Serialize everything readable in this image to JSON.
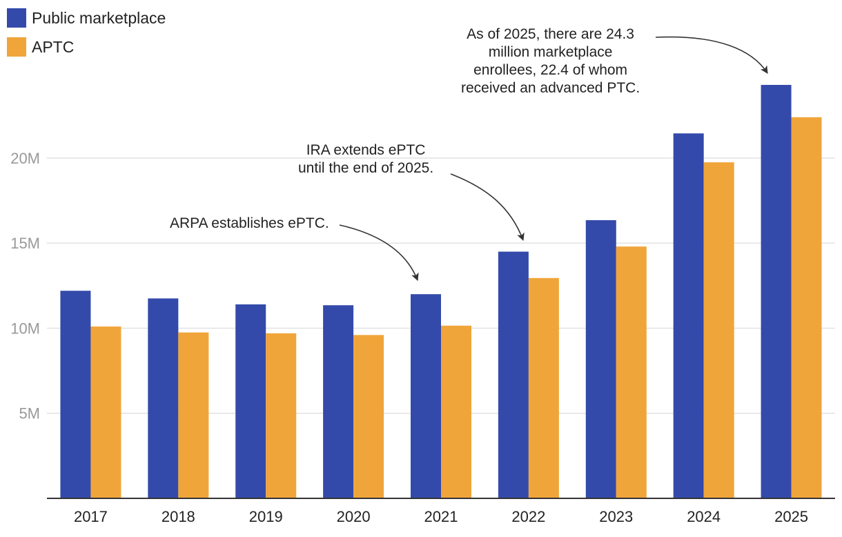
{
  "chart_data": {
    "type": "bar",
    "categories": [
      "2017",
      "2018",
      "2019",
      "2020",
      "2021",
      "2022",
      "2023",
      "2024",
      "2025"
    ],
    "series": [
      {
        "name": "Public marketplace",
        "color": "#344aaa",
        "values": [
          12.2,
          11.75,
          11.4,
          11.35,
          12.0,
          14.5,
          16.35,
          21.45,
          24.3
        ]
      },
      {
        "name": "APTC",
        "color": "#f0a53a",
        "values": [
          10.1,
          9.75,
          9.7,
          9.6,
          10.15,
          12.95,
          14.8,
          19.75,
          22.4
        ]
      }
    ],
    "ylim": [
      0,
      24.3
    ],
    "yticks": [
      {
        "value": 5,
        "label": "5M"
      },
      {
        "value": 10,
        "label": "10M"
      },
      {
        "value": 15,
        "label": "15M"
      },
      {
        "value": 20,
        "label": "20M"
      }
    ],
    "grid": true,
    "legend_position": "top-left",
    "annotations": [
      {
        "id": "arpa",
        "lines": [
          "ARPA establishes ePTC."
        ]
      },
      {
        "id": "ira",
        "lines": [
          "IRA extends ePTC",
          "until the end of 2025."
        ]
      },
      {
        "id": "y2025",
        "lines": [
          "As of 2025, there are 24.3",
          "million marketplace",
          "enrollees, 22.4 of whom",
          "received an advanced PTC."
        ]
      }
    ]
  }
}
